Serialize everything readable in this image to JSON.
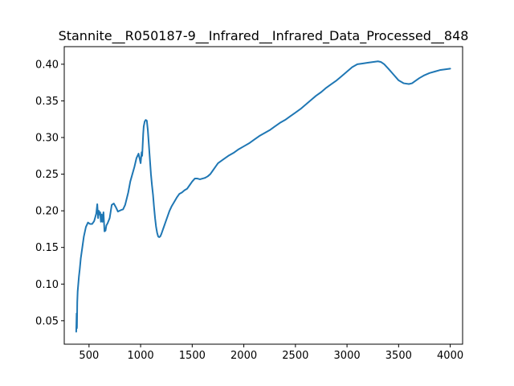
{
  "chart_data": {
    "type": "line",
    "title": "Stannite__R050187-9__Infrared__Infrared_Data_Processed__848",
    "xlabel": "",
    "ylabel": "",
    "xlim": [
      260,
      4120
    ],
    "ylim": [
      0.018,
      0.424
    ],
    "x_ticks": [
      500,
      1000,
      1500,
      2000,
      2500,
      3000,
      3500,
      4000
    ],
    "x_tick_labels": [
      "500",
      "1000",
      "1500",
      "2000",
      "2500",
      "3000",
      "3500",
      "4000"
    ],
    "y_ticks": [
      0.05,
      0.1,
      0.15,
      0.2,
      0.25,
      0.3,
      0.35,
      0.4
    ],
    "y_tick_labels": [
      "0.05",
      "0.10",
      "0.15",
      "0.20",
      "0.25",
      "0.30",
      "0.35",
      "0.40"
    ],
    "grid": false,
    "line_color": "#1f77b4",
    "series": [
      {
        "x": [
          376,
          380,
          383,
          386,
          390,
          396,
          402,
          410,
          420,
          435,
          450,
          470,
          490,
          510,
          530,
          550,
          570,
          580,
          588,
          595,
          600,
          608,
          615,
          622,
          630,
          640,
          650,
          660,
          668,
          680,
          700,
          720,
          740,
          760,
          780,
          795,
          810,
          830,
          850,
          880,
          900,
          920,
          940,
          960,
          980,
          1000,
          1010,
          1015,
          1020,
          1025,
          1030,
          1040,
          1050,
          1060,
          1070,
          1080,
          1090,
          1100,
          1110,
          1120,
          1130,
          1140,
          1150,
          1160,
          1170,
          1180,
          1190,
          1200,
          1210,
          1220,
          1230,
          1240,
          1250,
          1260,
          1270,
          1280,
          1300,
          1325,
          1350,
          1375,
          1400,
          1425,
          1450,
          1475,
          1500,
          1525,
          1550,
          1575,
          1600,
          1625,
          1650,
          1675,
          1700,
          1725,
          1750,
          1800,
          1850,
          1900,
          1950,
          2000,
          2050,
          2100,
          2150,
          2200,
          2250,
          2300,
          2350,
          2400,
          2450,
          2500,
          2550,
          2600,
          2650,
          2700,
          2750,
          2800,
          2850,
          2900,
          2950,
          3000,
          3050,
          3100,
          3150,
          3200,
          3250,
          3300,
          3330,
          3360,
          3400,
          3450,
          3500,
          3550,
          3600,
          3630,
          3660,
          3700,
          3750,
          3800,
          3850,
          3900,
          3950,
          4000
        ],
        "y": [
          0.035,
          0.06,
          0.04,
          0.075,
          0.09,
          0.1,
          0.11,
          0.12,
          0.135,
          0.15,
          0.165,
          0.178,
          0.184,
          0.182,
          0.182,
          0.186,
          0.196,
          0.209,
          0.19,
          0.2,
          0.195,
          0.198,
          0.185,
          0.195,
          0.185,
          0.198,
          0.172,
          0.173,
          0.18,
          0.183,
          0.19,
          0.208,
          0.21,
          0.205,
          0.199,
          0.2,
          0.201,
          0.202,
          0.208,
          0.225,
          0.24,
          0.25,
          0.26,
          0.272,
          0.278,
          0.265,
          0.28,
          0.275,
          0.29,
          0.305,
          0.315,
          0.322,
          0.324,
          0.323,
          0.31,
          0.29,
          0.27,
          0.25,
          0.235,
          0.222,
          0.205,
          0.19,
          0.178,
          0.17,
          0.165,
          0.164,
          0.165,
          0.168,
          0.172,
          0.176,
          0.18,
          0.184,
          0.188,
          0.192,
          0.196,
          0.2,
          0.206,
          0.212,
          0.218,
          0.223,
          0.225,
          0.228,
          0.23,
          0.235,
          0.24,
          0.244,
          0.244,
          0.243,
          0.244,
          0.245,
          0.247,
          0.25,
          0.255,
          0.26,
          0.265,
          0.27,
          0.275,
          0.279,
          0.284,
          0.288,
          0.292,
          0.297,
          0.302,
          0.306,
          0.31,
          0.315,
          0.32,
          0.324,
          0.329,
          0.334,
          0.339,
          0.345,
          0.351,
          0.357,
          0.362,
          0.368,
          0.373,
          0.378,
          0.384,
          0.39,
          0.396,
          0.4,
          0.401,
          0.402,
          0.403,
          0.404,
          0.403,
          0.4,
          0.394,
          0.386,
          0.378,
          0.374,
          0.373,
          0.374,
          0.377,
          0.381,
          0.385,
          0.388,
          0.39,
          0.392,
          0.393,
          0.394
        ]
      }
    ]
  }
}
